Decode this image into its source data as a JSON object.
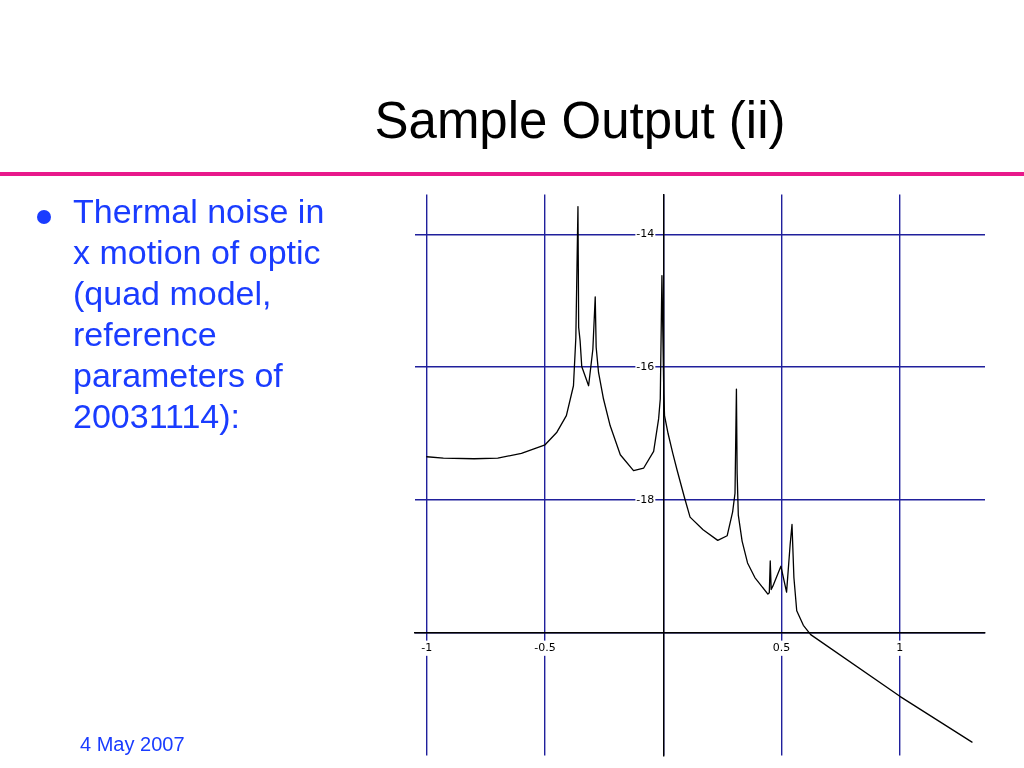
{
  "chart_data": {
    "type": "line",
    "title": "Sample Output (ii)",
    "annotations": [
      "Thermal noise in x motion of optic (quad model, reference parameters of 20031114):",
      "4 May 2007"
    ],
    "x": [
      -1,
      -0.93,
      -0.8,
      -0.7,
      -0.6,
      -0.5,
      -0.45,
      -0.41,
      -0.38,
      -0.37,
      -0.361,
      -0.358,
      -0.352,
      -0.345,
      -0.316,
      -0.298,
      -0.288,
      -0.284,
      -0.274,
      -0.253,
      -0.225,
      -0.182,
      -0.126,
      -0.083,
      -0.041,
      -0.02,
      -0.013,
      -0.006,
      0.002,
      0.005,
      0.02,
      0.04,
      0.058,
      0.089,
      0.113,
      0.168,
      0.23,
      0.27,
      0.293,
      0.303,
      0.309,
      0.312,
      0.317,
      0.333,
      0.356,
      0.387,
      0.442,
      0.448,
      0.452,
      0.456,
      0.463,
      0.497,
      0.521,
      0.536,
      0.544,
      0.552,
      0.564,
      0.592,
      0.623,
      1.0,
      1.305
    ],
    "series": [
      {
        "color": "#000000",
        "values": [
          -17.35,
          -17.37,
          -17.38,
          -17.37,
          -17.3,
          -17.17,
          -16.98,
          -16.73,
          -16.28,
          -15.56,
          -13.58,
          -15.4,
          -15.6,
          -15.99,
          -16.28,
          -15.73,
          -14.94,
          -15.7,
          -16.08,
          -16.48,
          -16.88,
          -17.32,
          -17.56,
          -17.52,
          -17.27,
          -16.78,
          -16.48,
          -14.62,
          -16.4,
          -16.73,
          -17.0,
          -17.3,
          -17.55,
          -17.96,
          -18.26,
          -18.45,
          -18.61,
          -18.54,
          -18.18,
          -17.9,
          -16.33,
          -17.6,
          -18.23,
          -18.62,
          -18.95,
          -19.17,
          -19.42,
          -19.4,
          -18.92,
          -19.35,
          -19.3,
          -19.0,
          -19.39,
          -18.68,
          -18.37,
          -19.17,
          -19.67,
          -19.89,
          -20.03,
          -20.96,
          -21.65
        ]
      }
    ],
    "xlim": [
      -1.05,
      1.36
    ],
    "ylim": [
      -21.85,
      -13.4
    ],
    "xticks": [
      -1,
      -0.5,
      {
        "value": 0,
        "label": null
      },
      0.5,
      1
    ],
    "yticks": [
      {
        "value": -20,
        "label": null
      },
      -18,
      -16,
      -14
    ],
    "grid": true
  }
}
